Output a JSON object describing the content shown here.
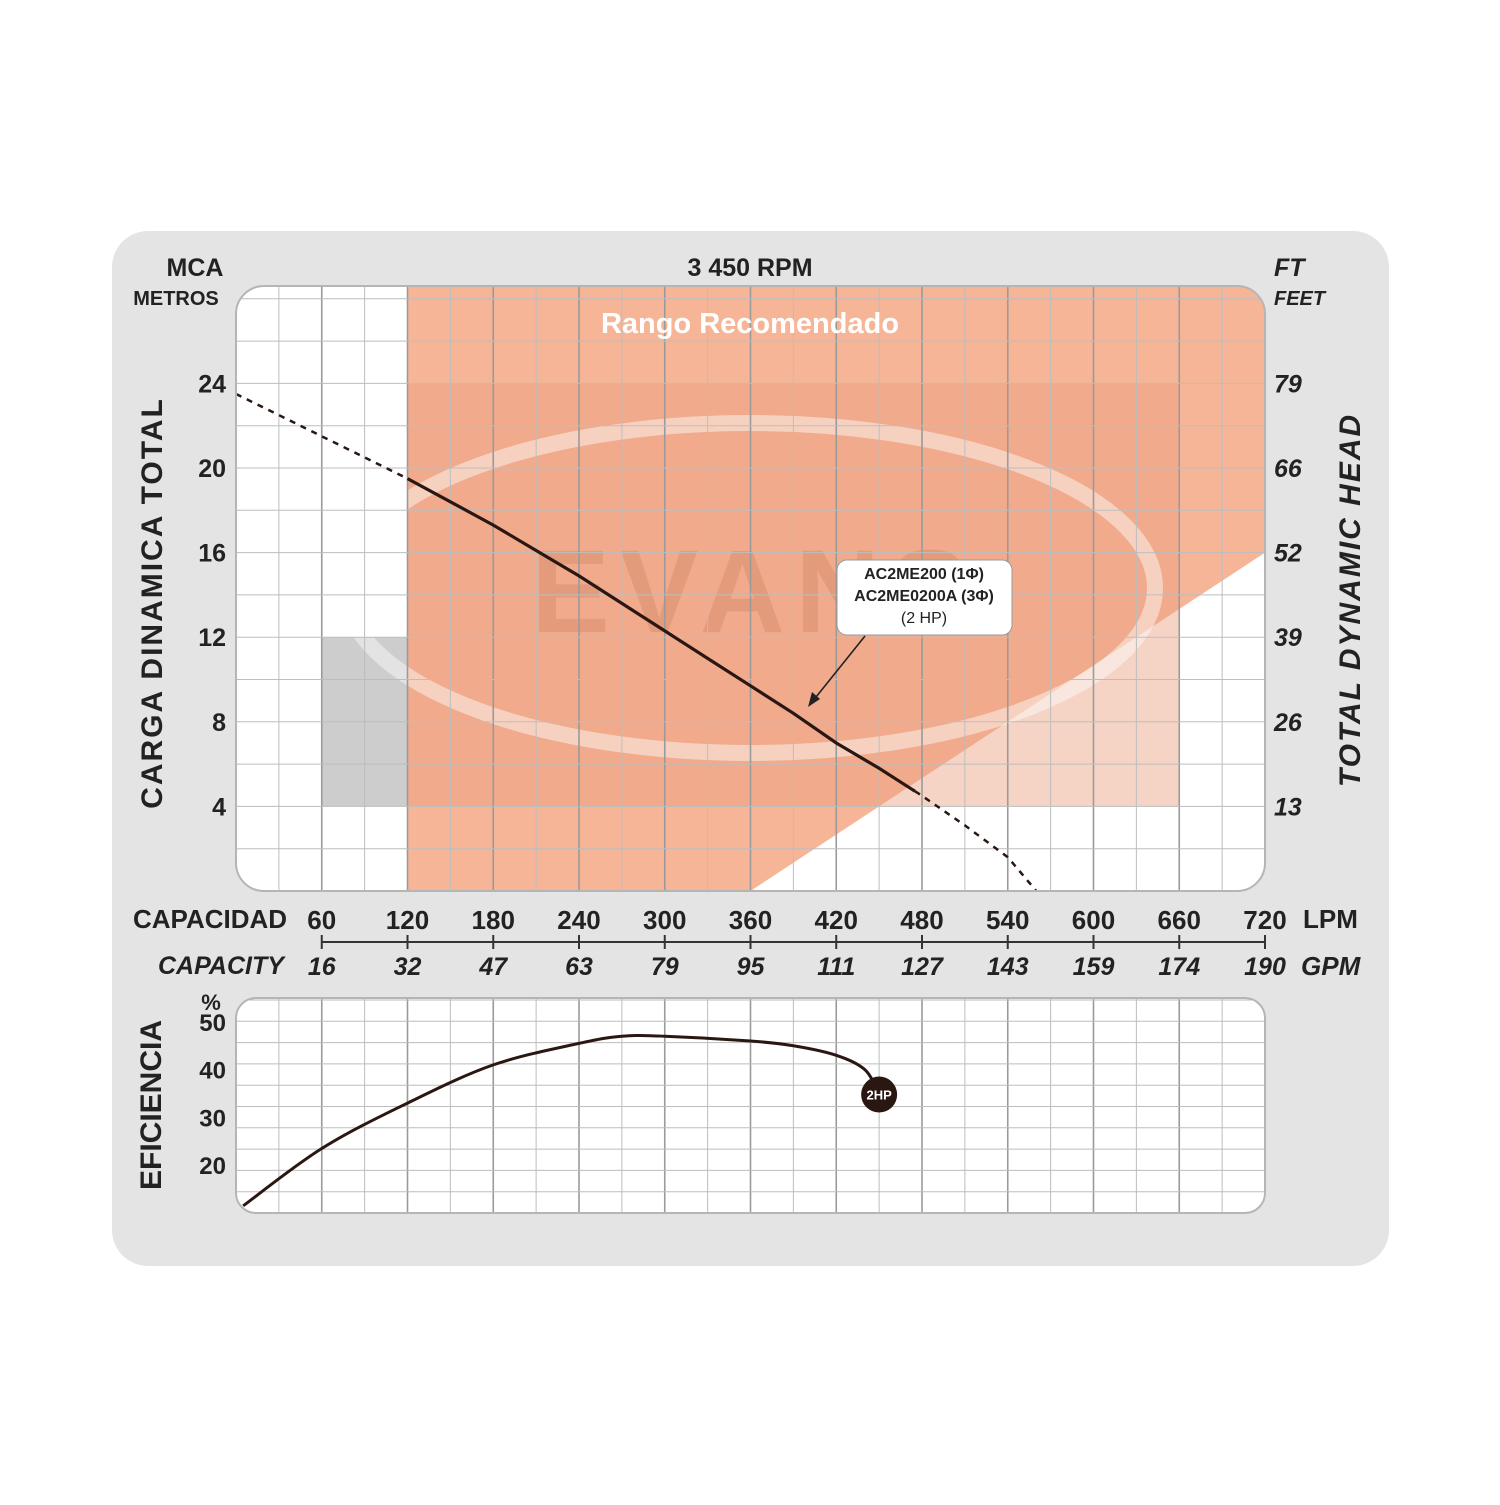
{
  "header": {
    "left_unit": "MCA",
    "left_unit_sub": "METROS",
    "center": "3 450 RPM",
    "right_unit": "FT",
    "right_unit_sub": "FEET"
  },
  "recommended_label": "Rango Recomendado",
  "watermark": "EVANS",
  "colors": {
    "recommended": "#f7b597",
    "panel": "#e3e3e3",
    "grid": "#bdbdbd",
    "curve": "#2a1712",
    "shade": "#cdcdcd"
  },
  "chart_data": [
    {
      "type": "line",
      "ylabel": "CARGA DINAMICA TOTAL",
      "ylabel_right": "TOTAL DYNAMIC HEAD",
      "x_label": "CAPACIDAD",
      "x_label_en": "CAPACITY",
      "x_unit": "LPM",
      "x_unit_alt": "GPM",
      "x_ticks_lpm": [
        "60",
        "120",
        "180",
        "240",
        "300",
        "360",
        "420",
        "480",
        "540",
        "600",
        "660",
        "720"
      ],
      "x_ticks_gpm": [
        "16",
        "32",
        "47",
        "63",
        "79",
        "95",
        "111",
        "127",
        "143",
        "159",
        "174",
        "190"
      ],
      "y_ticks_m": [
        "24",
        "20",
        "16",
        "12",
        "8",
        "4"
      ],
      "y_ticks_ft": [
        "79",
        "66",
        "52",
        "39",
        "26",
        "13"
      ],
      "xlim": [
        0,
        720
      ],
      "ylim": [
        0,
        28.5
      ],
      "recommended_range_lpm": [
        120,
        720
      ],
      "series": [
        {
          "name": "AC2ME200 (1Φ)",
          "name_2": "AC2ME0200A (3Φ)",
          "name_3": "(2 HP)",
          "x": [
            0,
            30,
            60,
            90,
            120,
            150,
            180,
            210,
            240,
            270,
            300,
            330,
            360,
            390,
            420,
            450,
            480,
            510,
            540,
            560
          ],
          "y": [
            23.5,
            22.5,
            21.5,
            20.5,
            19.5,
            18.4,
            17.3,
            16.1,
            14.9,
            13.6,
            12.3,
            11.0,
            9.7,
            8.4,
            7.0,
            5.8,
            4.5,
            3.1,
            1.6,
            0.0
          ],
          "solid_range": [
            120,
            475
          ]
        }
      ]
    },
    {
      "type": "line",
      "ylabel": "EFICIENCIA",
      "y_unit": "%",
      "y_ticks": [
        "50",
        "40",
        "30",
        "20"
      ],
      "xlim": [
        0,
        720
      ],
      "ylim": [
        10,
        55
      ],
      "series": [
        {
          "name": "2HP",
          "x": [
            5,
            60,
            120,
            180,
            240,
            270,
            300,
            360,
            390,
            420,
            440,
            450
          ],
          "y": [
            11.5,
            23.5,
            33,
            41,
            45.5,
            47,
            47,
            46,
            45,
            43,
            40,
            35
          ]
        }
      ]
    }
  ]
}
